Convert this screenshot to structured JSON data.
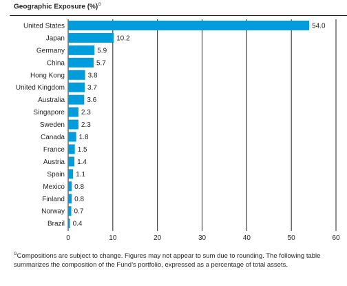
{
  "chart_data": {
    "type": "bar",
    "orientation": "horizontal",
    "title": "Geographic Exposure (%)",
    "title_note_mark": "G",
    "categories": [
      "United States",
      "Japan",
      "Germany",
      "China",
      "Hong Kong",
      "United Kingdom",
      "Australia",
      "Singapore",
      "Sweden",
      "Canada",
      "France",
      "Austria",
      "Spain",
      "Mexico",
      "Finland",
      "Norway",
      "Brazil"
    ],
    "values": [
      54.0,
      10.2,
      5.9,
      5.7,
      3.8,
      3.7,
      3.6,
      2.3,
      2.3,
      1.8,
      1.5,
      1.4,
      1.1,
      0.8,
      0.8,
      0.7,
      0.4
    ],
    "value_labels": [
      "54.0",
      "10.2",
      "5.9",
      "5.7",
      "3.8",
      "3.7",
      "3.6",
      "2.3",
      "2.3",
      "1.8",
      "1.5",
      "1.4",
      "1.1",
      "0.8",
      "0.8",
      "0.7",
      "0.4"
    ],
    "xlim": [
      0,
      60
    ],
    "xticks": [
      "0",
      "10",
      "20",
      "30",
      "40",
      "50",
      "60"
    ],
    "grid": "vertical",
    "colors": {
      "bar": "#009ddc",
      "grid": "#231f20",
      "text": "#231f20"
    }
  },
  "footnote": {
    "mark": "G",
    "text": "Compositions are subject to change. Figures may not appear to sum due to rounding. The following table summarizes the composition of the Fund’s portfolio, expressed as a percentage of total assets."
  }
}
